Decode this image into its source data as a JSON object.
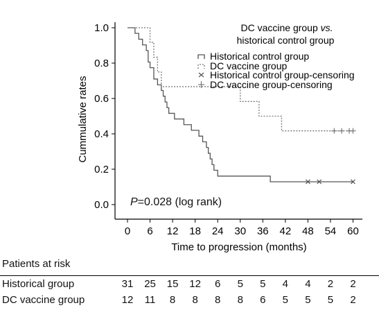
{
  "chart_data": {
    "type": "line",
    "subtype": "kaplan-meier",
    "title_line1": "DC vaccine group",
    "title_vs": "vs.",
    "title_line2": "historical control group",
    "xlabel": "Time to progression (months)",
    "ylabel": "Cummulative rates",
    "x_ticks": [
      0,
      6,
      12,
      18,
      24,
      30,
      36,
      42,
      48,
      54,
      60
    ],
    "y_ticks": [
      "0.0",
      "0.2",
      "0.4",
      "0.6",
      "0.8",
      "1.0"
    ],
    "xlim": [
      -3,
      62
    ],
    "ylim": [
      -0.02,
      1.02
    ],
    "legend": [
      "Historical control group",
      "DC vaccine group",
      "Historical control group-censoring",
      "DC vaccine group-censoring"
    ],
    "series": [
      {
        "name": "Historical control group",
        "style": "solid",
        "steps": [
          [
            0,
            1.0
          ],
          [
            2,
            0.968
          ],
          [
            3,
            0.935
          ],
          [
            4,
            0.903
          ],
          [
            5,
            0.871
          ],
          [
            5.5,
            0.806
          ],
          [
            6,
            0.774
          ],
          [
            7,
            0.71
          ],
          [
            8,
            0.677
          ],
          [
            9,
            0.645
          ],
          [
            9.5,
            0.613
          ],
          [
            10,
            0.58
          ],
          [
            10.5,
            0.548
          ],
          [
            11,
            0.516
          ],
          [
            12.5,
            0.484
          ],
          [
            15,
            0.452
          ],
          [
            17,
            0.42
          ],
          [
            19,
            0.387
          ],
          [
            20,
            0.355
          ],
          [
            21,
            0.323
          ],
          [
            21.5,
            0.29
          ],
          [
            22,
            0.258
          ],
          [
            22.5,
            0.226
          ],
          [
            23,
            0.194
          ],
          [
            24,
            0.161
          ],
          [
            38,
            0.129
          ],
          [
            60,
            0.129
          ]
        ],
        "censor_x": [
          48,
          51,
          60
        ]
      },
      {
        "name": "DC vaccine group",
        "style": "dotted",
        "steps": [
          [
            0,
            1.0
          ],
          [
            6,
            0.917
          ],
          [
            7,
            0.833
          ],
          [
            8,
            0.75
          ],
          [
            9,
            0.667
          ],
          [
            30,
            0.583
          ],
          [
            35,
            0.5
          ],
          [
            41,
            0.417
          ],
          [
            60,
            0.417
          ]
        ],
        "censor_x": [
          55,
          57,
          59,
          60
        ]
      }
    ],
    "annotation_p_label": "P",
    "annotation_p_value": "=0.028 (log rank)",
    "colors": {
      "historical": "#555555",
      "dc": "#777777",
      "axis": "#000000"
    }
  },
  "risk_table": {
    "title": "Patients at risk",
    "rows": [
      {
        "label": "Historical group",
        "values": [
          "31",
          "25",
          "15",
          "12",
          "6",
          "5",
          "5",
          "4",
          "4",
          "2",
          "2"
        ]
      },
      {
        "label": "DC vaccine group",
        "values": [
          "12",
          "11",
          "8",
          "8",
          "8",
          "8",
          "6",
          "5",
          "5",
          "5",
          "2"
        ]
      }
    ]
  }
}
